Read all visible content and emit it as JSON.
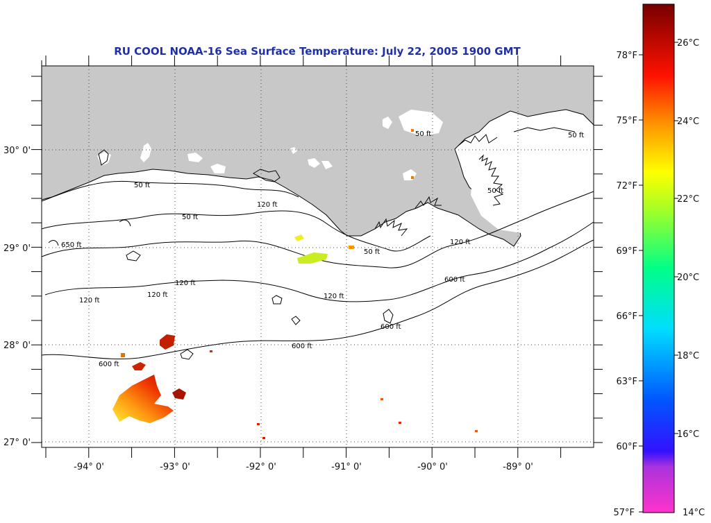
{
  "title": "RU COOL  NOAA-16  Sea Surface Temperature:  July 22, 2005 1900 GMT",
  "map": {
    "longitude_labels": [
      "-94° 0'",
      "-93° 0'",
      "-92° 0'",
      "-91° 0'",
      "-90° 0'",
      "-89° 0'"
    ],
    "latitude_labels": [
      "30° 0'",
      "29° 0'",
      "28° 0'",
      "27° 0'"
    ],
    "isobath_labels": [
      "50 ft",
      "50 ft",
      "50 ft",
      "50 ft",
      "50 ft",
      "50 ft",
      "120 ft",
      "120 ft",
      "120 ft",
      "120 ft",
      "120 ft",
      "120 ft",
      "600 ft",
      "600 ft",
      "600 ft",
      "600 ft",
      "650 ft"
    ],
    "land_color": "#c8c8c8",
    "water_color": "#ffffff"
  },
  "colorbar": {
    "fahrenheit_labels": [
      "78°F",
      "75°F",
      "72°F",
      "69°F",
      "66°F",
      "63°F",
      "60°F",
      "57°F"
    ],
    "celsius_labels": [
      "26°C",
      "24°C",
      "22°C",
      "20°C",
      "18°C",
      "16°C",
      "14°C"
    ],
    "range_c": [
      14,
      27.5
    ],
    "colors": [
      "#ff33cc",
      "#8833ee",
      "#0000ff",
      "#00ccff",
      "#00ff66",
      "#ccff00",
      "#ffd000",
      "#ff6600",
      "#ff0000",
      "#880000"
    ]
  }
}
